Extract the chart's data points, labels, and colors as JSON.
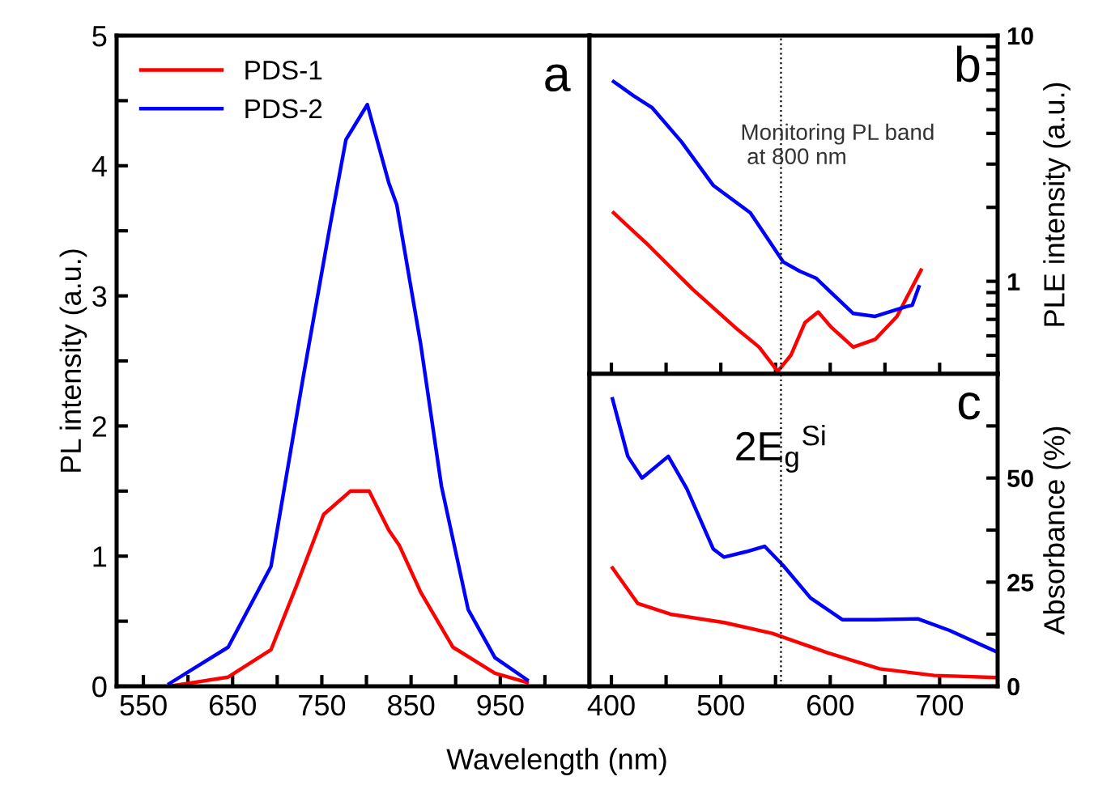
{
  "chart_data": [
    {
      "type": "line",
      "xlabel": "Wavelength (nm)",
      "ylabel": "PL intensity (a.u.)",
      "xlim": [
        520,
        1050
      ],
      "ylim": [
        0,
        5
      ],
      "xticks": [
        550,
        {
          "value": 600,
          "label": null
        },
        650,
        {
          "value": 700,
          "label": null
        },
        750,
        {
          "value": 800,
          "label": null
        },
        850,
        {
          "value": 900,
          "label": null
        },
        950,
        {
          "value": 1000,
          "label": null
        }
      ],
      "yticks": [
        0,
        {
          "value": 0.5,
          "label": null
        },
        1,
        {
          "value": 1.5,
          "label": null
        },
        2,
        {
          "value": 2.5,
          "label": null
        },
        3,
        {
          "value": 3.5,
          "label": null
        },
        4,
        {
          "value": 4.5,
          "label": null
        },
        5
      ],
      "legend": "top left",
      "grid": false,
      "annotations": [
        "a"
      ],
      "series": [
        {
          "name": "PDS-1",
          "color": "#ff0000",
          "x": [
            579,
            645,
            693,
            722,
            752,
            782,
            803,
            825,
            837,
            861,
            897,
            944,
            980
          ],
          "values": [
            0.0,
            0.07,
            0.28,
            0.78,
            1.32,
            1.5,
            1.5,
            1.2,
            1.08,
            0.72,
            0.3,
            0.1,
            0.03
          ]
        },
        {
          "name": "PDS-2",
          "color": "#0000ff",
          "x": [
            579,
            645,
            693,
            729,
            759,
            777,
            801,
            825,
            834,
            861,
            884,
            914,
            944,
            980
          ],
          "values": [
            0.02,
            0.3,
            0.92,
            2.37,
            3.53,
            4.2,
            4.47,
            3.87,
            3.7,
            2.62,
            1.54,
            0.59,
            0.22,
            0.05
          ]
        }
      ]
    },
    {
      "type": "line",
      "ylabel": "PLE intensity (a.u.)",
      "xlim": [
        380,
        753
      ],
      "ylim": [
        0.42,
        10
      ],
      "log": "y",
      "tick_labels": "y",
      "xticks": [
        400,
        450,
        500,
        550,
        600,
        650,
        700
      ],
      "yticks": [
        {
          "value": 0.5,
          "label": null
        },
        {
          "value": 0.6,
          "label": null
        },
        {
          "value": 0.7,
          "label": null
        },
        {
          "value": 0.8,
          "label": null
        },
        {
          "value": 0.9,
          "label": null
        },
        1,
        {
          "value": 2,
          "label": null
        },
        {
          "value": 3,
          "label": null
        },
        {
          "value": 4,
          "label": null
        },
        {
          "value": 5,
          "label": null
        },
        {
          "value": 6,
          "label": null
        },
        {
          "value": 7,
          "label": null
        },
        {
          "value": 8,
          "label": null
        },
        {
          "value": 9,
          "label": null
        },
        10
      ],
      "grid": false,
      "ref_lines": [
        {
          "axis": "x",
          "value": 555,
          "line_style": "dotted",
          "color": "#000000"
        }
      ],
      "annotations": [
        "b",
        "Monitoring PL band\n at 800 nm"
      ],
      "series": [
        {
          "color": "#ff0000",
          "x": [
            402,
            434,
            474,
            513,
            535,
            552,
            564,
            577,
            589,
            601,
            621,
            641,
            661,
            670,
            683
          ],
          "values": [
            1.9,
            1.4,
            0.93,
            0.65,
            0.54,
            0.43,
            0.5,
            0.68,
            0.75,
            0.65,
            0.54,
            0.58,
            0.72,
            0.86,
            1.11
          ]
        },
        {
          "color": "#0000ff",
          "x": [
            402,
            420,
            437,
            464,
            493,
            527,
            557,
            572,
            587,
            621,
            641,
            670,
            675,
            681
          ],
          "values": [
            6.5,
            5.7,
            5.1,
            3.7,
            2.46,
            1.9,
            1.2,
            1.1,
            1.03,
            0.74,
            0.72,
            0.79,
            0.8,
            0.95
          ]
        }
      ]
    },
    {
      "type": "line",
      "ylabel": "Absorbance (%)",
      "xlim": [
        380,
        753
      ],
      "ylim": [
        0,
        75
      ],
      "xticks": [
        400,
        {
          "value": 450,
          "label": null
        },
        500,
        {
          "value": 550,
          "label": null
        },
        600,
        {
          "value": 650,
          "label": null
        },
        700
      ],
      "yticks": [
        0,
        {
          "value": 12.5,
          "label": null
        },
        25,
        {
          "value": 37.5,
          "label": null
        },
        50,
        {
          "value": 62.5,
          "label": null
        }
      ],
      "grid": false,
      "ref_lines": [
        {
          "axis": "x",
          "value": 555,
          "line_style": "dotted",
          "color": "#000000"
        }
      ],
      "annotations": [
        "c",
        {
          "text": "2E$_{g}$$^{Si}$",
          "x": 555,
          "y": 57
        }
      ],
      "series": [
        {
          "color": "#ff0000",
          "x": [
            401,
            424,
            454,
            503,
            547,
            597,
            645,
            695,
            751
          ],
          "values": [
            28.4,
            19.9,
            17.3,
            15.3,
            12.7,
            8.1,
            4.2,
            2.6,
            2.1
          ]
        },
        {
          "color": "#0000ff",
          "x": [
            401,
            415,
            428,
            452,
            469,
            493,
            503,
            523,
            540,
            557,
            582,
            611,
            641,
            680,
            709,
            751
          ],
          "values": [
            69,
            55.2,
            50,
            55.2,
            47.4,
            33,
            31,
            32.3,
            33.6,
            29,
            21.2,
            16,
            16,
            16.2,
            13.4,
            8.4
          ]
        }
      ]
    }
  ]
}
